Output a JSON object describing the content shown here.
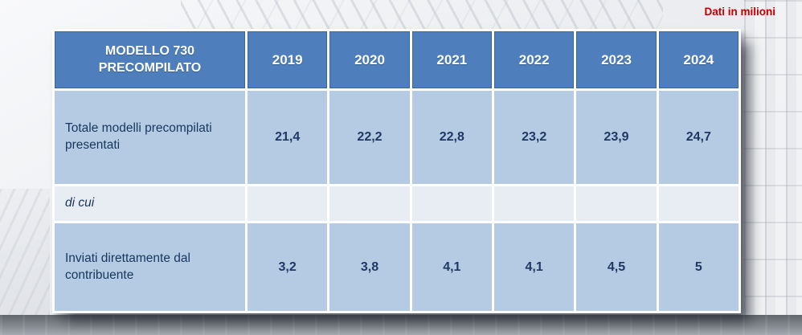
{
  "slide": {
    "note_top_right": "Dati in milioni"
  },
  "colors": {
    "header_bg": "#4e7fbc",
    "row_bg": "#b5cbe3",
    "subrow_bg": "#e8ecf3",
    "gridline": "#ffffff",
    "label_text": "#17365d",
    "value_text": "#1f3864",
    "note_red": "#c00000"
  },
  "chart_data": {
    "type": "table",
    "title": "MODELLO 730 PRECOMPILATO",
    "unit_note": "Dati in milioni",
    "columns": [
      "2019",
      "2020",
      "2021",
      "2022",
      "2023",
      "2024"
    ],
    "rows": [
      {
        "label": "Totale modelli precompilati presentati",
        "values": [
          "21,4",
          "22,2",
          "22,8",
          "23,2",
          "23,9",
          "24,7"
        ],
        "values_numeric": [
          21.4,
          22.2,
          22.8,
          23.2,
          23.9,
          24.7
        ]
      },
      {
        "label": "di cui",
        "values": [
          "",
          "",
          "",
          "",
          "",
          ""
        ]
      },
      {
        "label": "Inviati direttamente dal contribuente",
        "values": [
          "3,2",
          "3,8",
          "4,1",
          "4,1",
          "4,5",
          "5"
        ],
        "values_numeric": [
          3.2,
          3.8,
          4.1,
          4.1,
          4.5,
          5
        ]
      }
    ]
  }
}
